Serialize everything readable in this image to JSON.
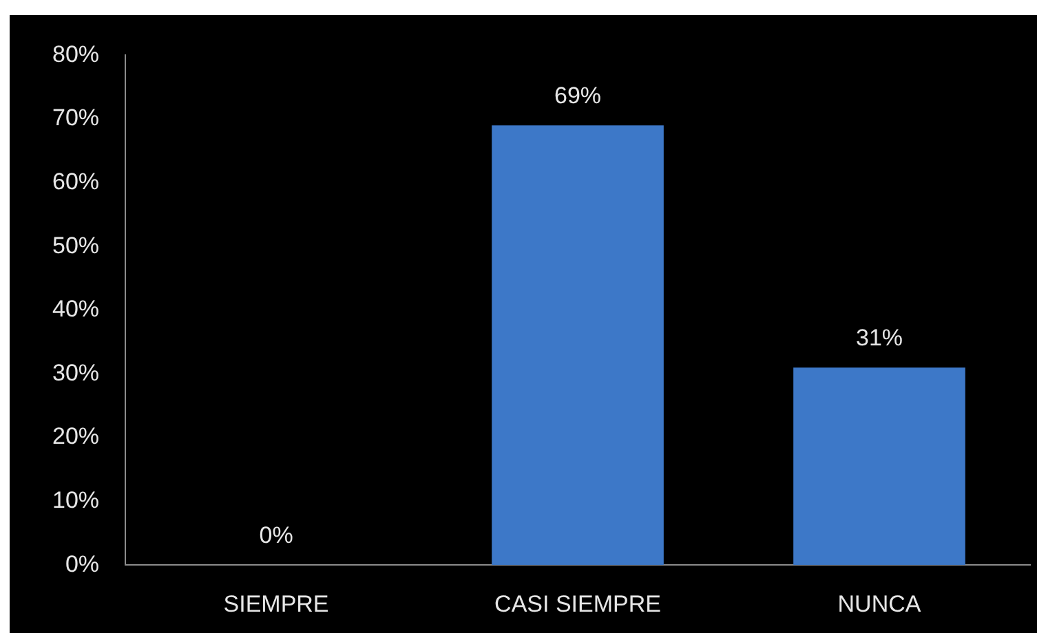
{
  "chart_data": {
    "type": "bar",
    "categories": [
      "SIEMPRE",
      "CASI SIEMPRE",
      "NUNCA"
    ],
    "values": [
      0,
      69,
      31
    ],
    "color": "#3d78c8",
    "value_labels": [
      "0%",
      "69%",
      "31%"
    ],
    "ylim": [
      0,
      80
    ],
    "yticks": [
      {
        "value": 0,
        "label": "0%"
      },
      {
        "value": 10,
        "label": "10%"
      },
      {
        "value": 20,
        "label": "20%"
      },
      {
        "value": 30,
        "label": "30%"
      },
      {
        "value": 40,
        "label": "40%"
      },
      {
        "value": 50,
        "label": "50%"
      },
      {
        "value": 60,
        "label": "60%"
      },
      {
        "value": 70,
        "label": "70%"
      },
      {
        "value": 80,
        "label": "80%"
      }
    ],
    "grid": false,
    "legend": false
  }
}
